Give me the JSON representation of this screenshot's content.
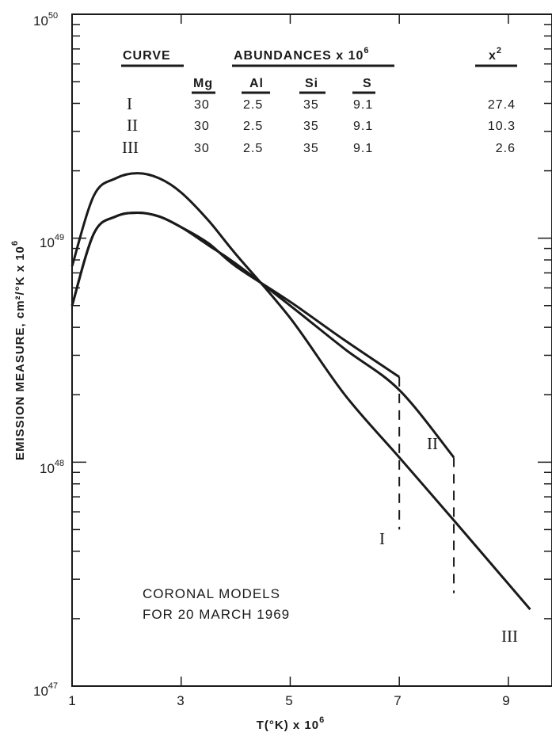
{
  "chart_data": {
    "type": "line",
    "title": "",
    "xlabel": "T(°K) x 10",
    "xlabel_exp": "6",
    "ylabel": "EMISSION MEASURE, cm²/°K x 10",
    "ylabel_exp": "6",
    "xlim": [
      1,
      9.8
    ],
    "ylim": [
      1e+47,
      1e+50
    ],
    "yscale": "log",
    "x_ticks": [
      "1",
      "3",
      "5",
      "7",
      "9"
    ],
    "y_ticks": [
      {
        "base": "10",
        "exp": "47"
      },
      {
        "base": "10",
        "exp": "48"
      },
      {
        "base": "10",
        "exp": "49"
      },
      {
        "base": "10",
        "exp": "50"
      }
    ],
    "grid": false,
    "series": [
      {
        "name": "I",
        "points": [
          [
            1.0,
            7.5e+48
          ],
          [
            1.4,
            1.55e+49
          ],
          [
            1.8,
            1.85e+49
          ],
          [
            2.2,
            1.95e+49
          ],
          [
            2.6,
            1.85e+49
          ],
          [
            3.0,
            1.6e+49
          ],
          [
            3.5,
            1.2e+49
          ],
          [
            4.0,
            8.5e+48
          ],
          [
            5.0,
            4.4e+48
          ],
          [
            6.0,
            2e+48
          ],
          [
            7.0,
            1.05e+48
          ],
          [
            8.0,
            5.5e+47
          ],
          [
            9.4,
            2.2e+47
          ]
        ],
        "drop_to": null
      },
      {
        "name": "II",
        "points": [
          [
            1.0,
            5e+48
          ],
          [
            1.4,
            1.05e+49
          ],
          [
            1.8,
            1.25e+49
          ],
          [
            2.2,
            1.3e+49
          ],
          [
            2.6,
            1.25e+49
          ],
          [
            3.0,
            1.12e+49
          ],
          [
            3.5,
            9.3e+48
          ],
          [
            4.0,
            7.7e+48
          ],
          [
            5.0,
            5e+48
          ],
          [
            6.0,
            3.2e+48
          ],
          [
            7.0,
            2.1e+48
          ],
          [
            8.0,
            1.05e+48
          ]
        ],
        "drop_to": [
          8.0,
          2.6e+47
        ]
      },
      {
        "name": "III",
        "points": [
          [
            1.0,
            5e+48
          ],
          [
            1.4,
            1.05e+49
          ],
          [
            1.8,
            1.25e+49
          ],
          [
            2.2,
            1.3e+49
          ],
          [
            2.6,
            1.25e+49
          ],
          [
            3.0,
            1.12e+49
          ],
          [
            3.5,
            9.5e+48
          ],
          [
            4.0,
            7.5e+48
          ],
          [
            5.0,
            5.2e+48
          ],
          [
            6.0,
            3.5e+48
          ],
          [
            7.0,
            2.4e+48
          ]
        ],
        "drop_to": [
          7.0,
          5e+47
        ]
      }
    ],
    "curve_labels": [
      {
        "text": "I",
        "x": 7.0,
        "y": 2.9e+48
      },
      {
        "text": "II",
        "x": 8.0,
        "y": 1.3e+48
      },
      {
        "text": "III",
        "x": 9.3,
        "y": 2.7e+47
      }
    ],
    "annotations": [
      "CORONAL MODELS",
      "FOR 20 MARCH 1969"
    ]
  },
  "table": {
    "headers": {
      "curve": "CURVE",
      "abundances": "ABUNDANCES x 10",
      "abundances_exp": "6",
      "chi": "x",
      "chi_exp": "2"
    },
    "subheaders": [
      "Mg",
      "Al",
      "Si",
      "S"
    ],
    "rows": [
      {
        "curve": "I",
        "mg": "30",
        "al": "2.5",
        "si": "35",
        "s": "9.1",
        "chi": "27.4"
      },
      {
        "curve": "II",
        "mg": "30",
        "al": "2.5",
        "si": "35",
        "s": "9.1",
        "chi": "10.3"
      },
      {
        "curve": "III",
        "mg": "30",
        "al": "2.5",
        "si": "35",
        "s": "9.1",
        "chi": "2.6"
      }
    ]
  }
}
